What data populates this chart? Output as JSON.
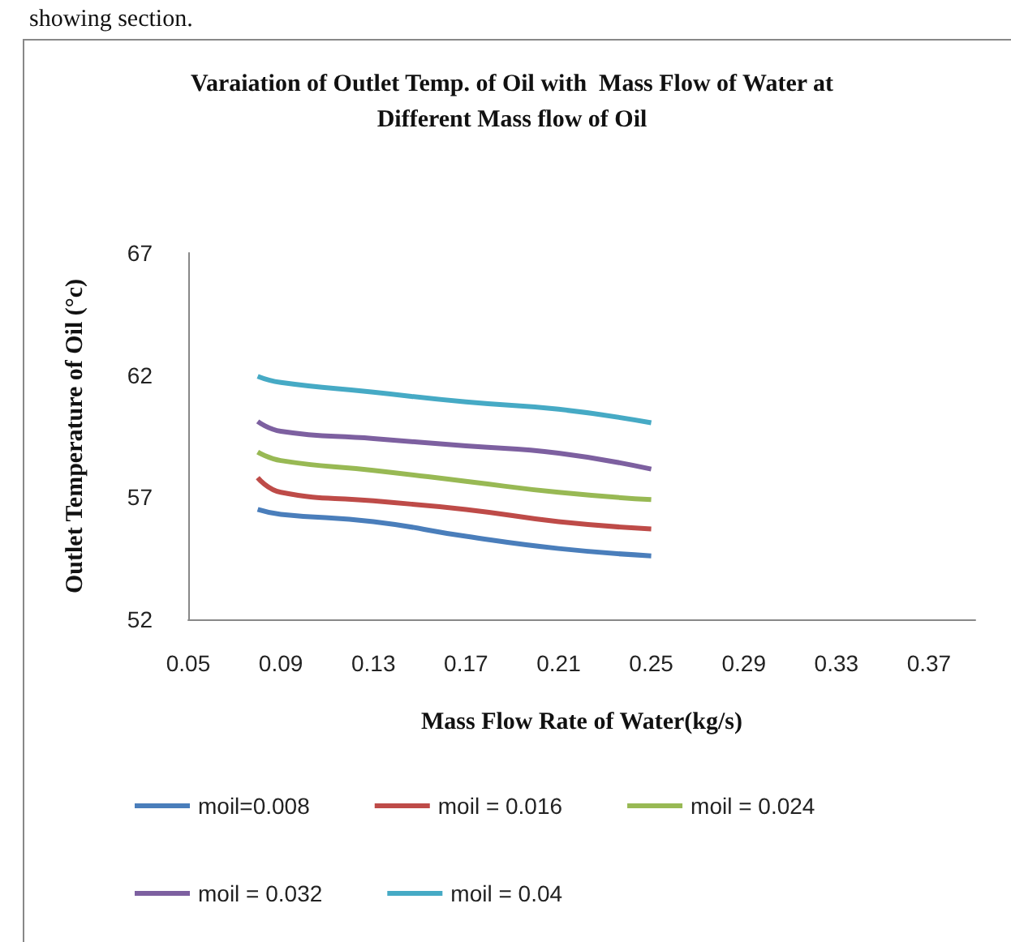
{
  "chart_data": {
    "type": "line",
    "title": "Varaiation of Outlet Temp. of Oil with  Mass Flow of Water at\nDifferent Mass flow of Oil",
    "xlabel": "Mass Flow Rate of Water(kg/s)",
    "ylabel": "Outlet Temperature of Oil (°c)",
    "annotations": [
      "showing section."
    ],
    "x": [
      0.08,
      0.09,
      0.13,
      0.17,
      0.21,
      0.25
    ],
    "series": [
      {
        "name": "moil=0.008",
        "color": "#4a7ebb",
        "values": [
          56.5,
          56.3,
          56.0,
          55.4,
          54.9,
          54.6
        ]
      },
      {
        "name": "moil = 0.016",
        "color": "#be4b48",
        "values": [
          57.8,
          57.2,
          56.85,
          56.5,
          56.0,
          55.7
        ]
      },
      {
        "name": "moil = 0.024",
        "color": "#98b954",
        "values": [
          58.85,
          58.5,
          58.1,
          57.65,
          57.2,
          56.9
        ]
      },
      {
        "name": "moil = 0.032",
        "color": "#7d60a0",
        "values": [
          60.1,
          59.7,
          59.4,
          59.1,
          58.8,
          58.15
        ]
      },
      {
        "name": "moil = 0.04",
        "color": "#46aac5",
        "values": [
          61.95,
          61.7,
          61.3,
          60.9,
          60.6,
          60.05
        ]
      }
    ],
    "xlim": [
      0.05,
      0.39
    ],
    "xticks": [
      0.05,
      0.09,
      0.13,
      0.17,
      0.21,
      0.25,
      0.29,
      0.33,
      0.37
    ],
    "ylim": [
      52,
      67
    ],
    "yticks": [
      52,
      57,
      62,
      67
    ],
    "grid": false,
    "legend": "bottom",
    "marker": "none",
    "line_style": "solid"
  }
}
